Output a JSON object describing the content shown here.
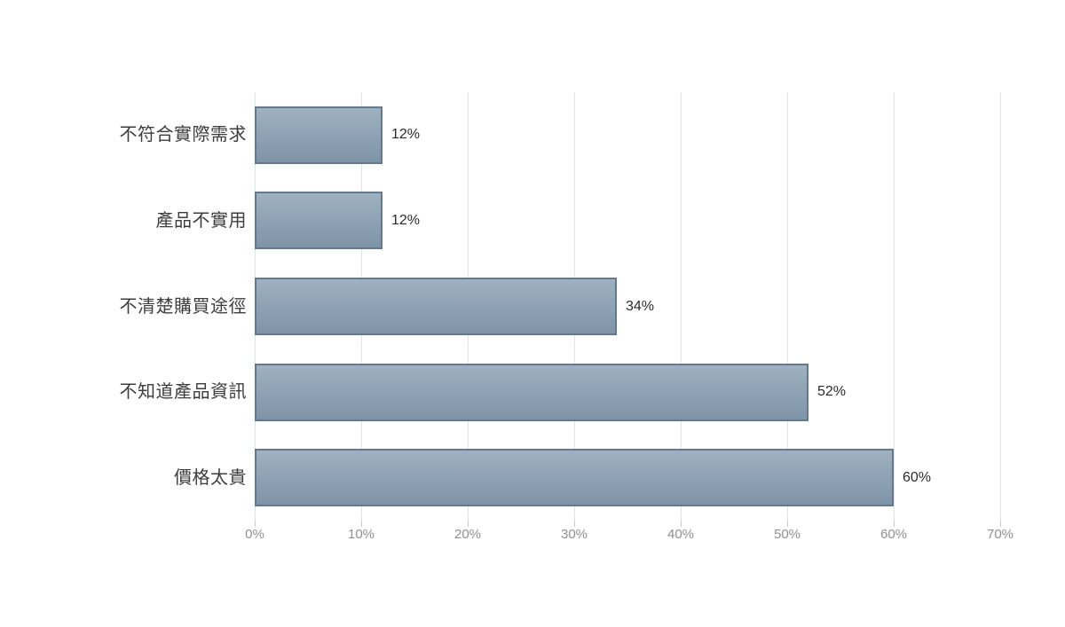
{
  "chart_data": {
    "type": "bar",
    "orientation": "horizontal",
    "categories": [
      "不符合實際需求",
      "產品不實用",
      "不清楚購買途徑",
      "不知道產品資訊",
      "價格太貴"
    ],
    "values": [
      12,
      12,
      34,
      52,
      60
    ],
    "data_labels": [
      "12%",
      "12%",
      "34%",
      "52%",
      "60%"
    ],
    "x_axis": {
      "range": [
        0,
        70
      ],
      "tick_values": [
        0,
        10,
        20,
        30,
        40,
        50,
        60,
        70
      ],
      "tick_labels": [
        "0%",
        "10%",
        "20%",
        "30%",
        "40%",
        "50%",
        "60%",
        "70%"
      ],
      "grid": "vertical"
    },
    "legend": "none",
    "colors": {
      "background": "#ffffff",
      "bar_fill_top": "#9fb1c2",
      "bar_fill_mid": "#8da1b4",
      "bar_fill_bottom": "#8094a8",
      "bar_border": "#64798d",
      "gridline": "#e4e4e6",
      "tick": "#c9cacc",
      "axis_label": "#8f9093",
      "category_label": "#3d3d3d",
      "value_label": "#2b2b2b"
    }
  }
}
